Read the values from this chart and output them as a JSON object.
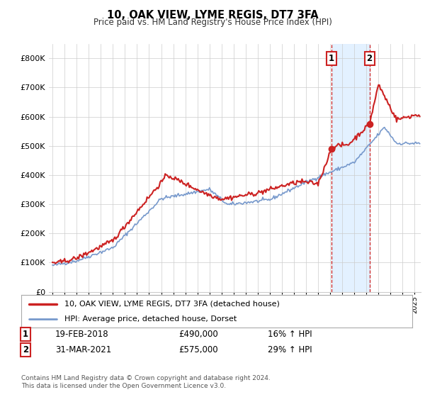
{
  "title": "10, OAK VIEW, LYME REGIS, DT7 3FA",
  "subtitle": "Price paid vs. HM Land Registry's House Price Index (HPI)",
  "ylim": [
    0,
    850000
  ],
  "yticks": [
    0,
    100000,
    200000,
    300000,
    400000,
    500000,
    600000,
    700000,
    800000
  ],
  "ytick_labels": [
    "£0",
    "£100K",
    "£200K",
    "£300K",
    "£400K",
    "£500K",
    "£600K",
    "£700K",
    "£800K"
  ],
  "line1_color": "#cc2222",
  "line2_color": "#7799cc",
  "shade_color": "#ddeeff",
  "t1_date": 2018.12,
  "t1_price": 490000,
  "t2_date": 2021.25,
  "t2_price": 575000,
  "legend_line1": "10, OAK VIEW, LYME REGIS, DT7 3FA (detached house)",
  "legend_line2": "HPI: Average price, detached house, Dorset",
  "ann1_date": "19-FEB-2018",
  "ann1_price": "£490,000",
  "ann1_pct": "16% ↑ HPI",
  "ann2_date": "31-MAR-2021",
  "ann2_price": "£575,000",
  "ann2_pct": "29% ↑ HPI",
  "footer": "Contains HM Land Registry data © Crown copyright and database right 2024.\nThis data is licensed under the Open Government Licence v3.0.",
  "xlim_start": 1994.7,
  "xlim_end": 2025.5
}
